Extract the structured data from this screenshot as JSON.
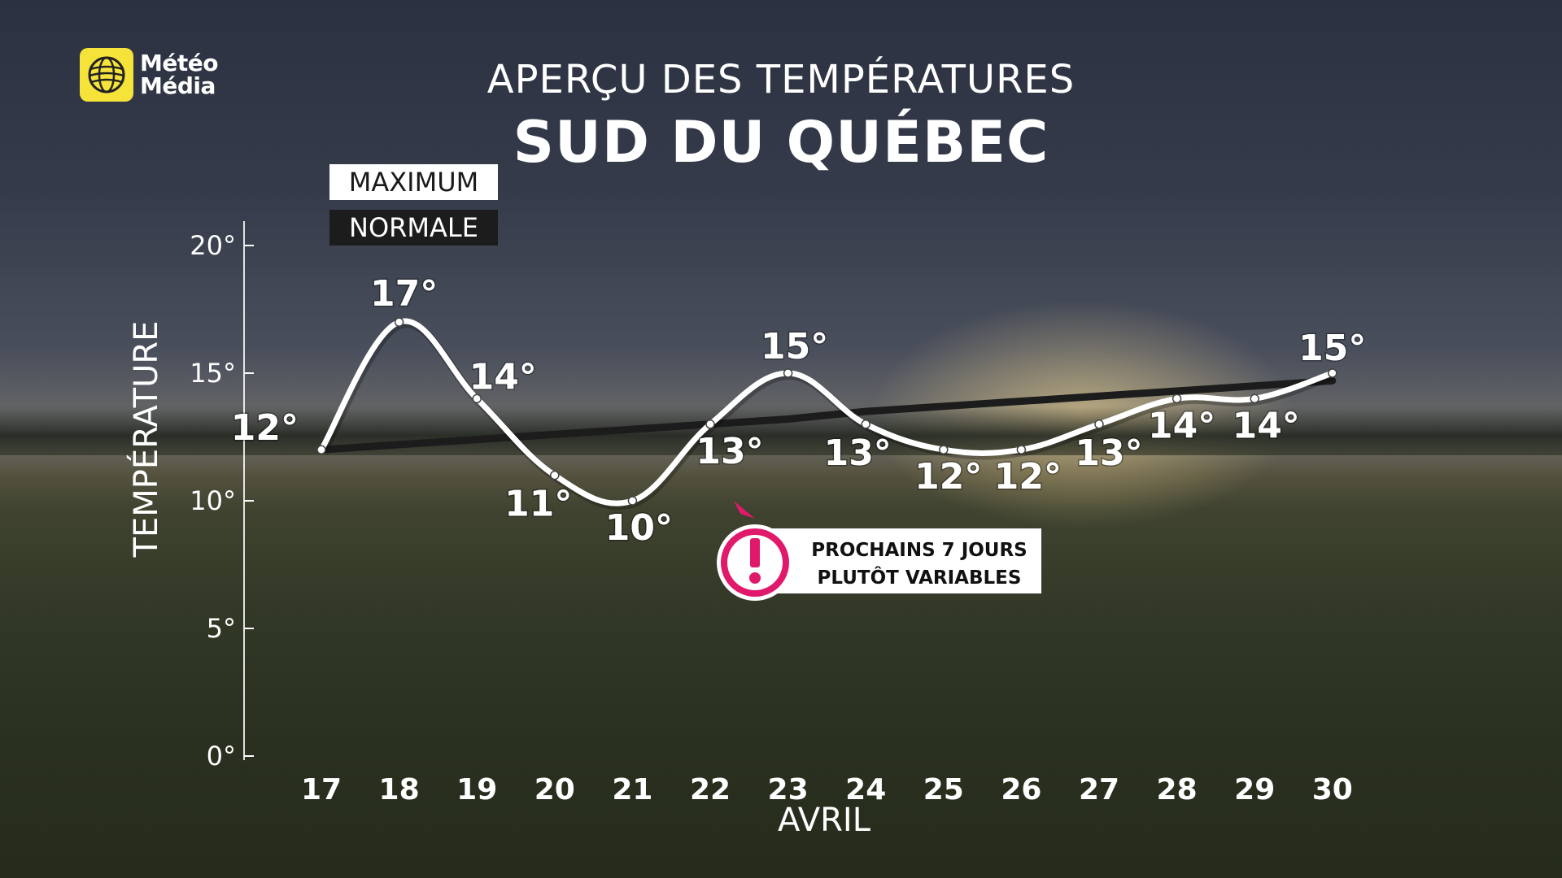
{
  "brand": {
    "line1": "Météo",
    "line2": "Média",
    "logo_icon": "globe-icon",
    "logo_color": "#f6e33a"
  },
  "title": "APERÇU DES TEMPÉRATURES",
  "subtitle": "SUD DU QUÉBEC",
  "legend": {
    "maximum": "MAXIMUM",
    "normale": "NORMALE"
  },
  "alert": {
    "icon": "exclamation-icon",
    "line1": "PROCHAINS 7 JOURS",
    "line2": "PLUTÔT VARIABLES",
    "color": "#e0196b"
  },
  "chart_data": {
    "type": "line",
    "xlabel": "AVRIL",
    "ylabel": "TEMPÉRATURE",
    "ylim": [
      0,
      20
    ],
    "y_ticks": [
      0,
      5,
      10,
      15,
      20
    ],
    "y_tick_labels": [
      "0°",
      "5°",
      "10°",
      "15°",
      "20°"
    ],
    "categories": [
      "17",
      "18",
      "19",
      "20",
      "21",
      "22",
      "23",
      "24",
      "25",
      "26",
      "27",
      "28",
      "29",
      "30"
    ],
    "series": [
      {
        "name": "MAXIMUM",
        "color": "#ffffff",
        "values": [
          12,
          17,
          14,
          11,
          10,
          13,
          15,
          13,
          12,
          12,
          13,
          14,
          14,
          15
        ],
        "labels": [
          "12°",
          "17°",
          "14°",
          "11°",
          "10°",
          "13°",
          "15°",
          "13°",
          "12°",
          "12°",
          "13°",
          "14°",
          "14°",
          "15°"
        ]
      },
      {
        "name": "NORMALE",
        "color": "#1c1c1c",
        "values": [
          12,
          12.2,
          12.4,
          12.6,
          12.8,
          13.0,
          13.2,
          13.5,
          13.7,
          13.9,
          14.1,
          14.3,
          14.5,
          14.7
        ]
      }
    ]
  }
}
